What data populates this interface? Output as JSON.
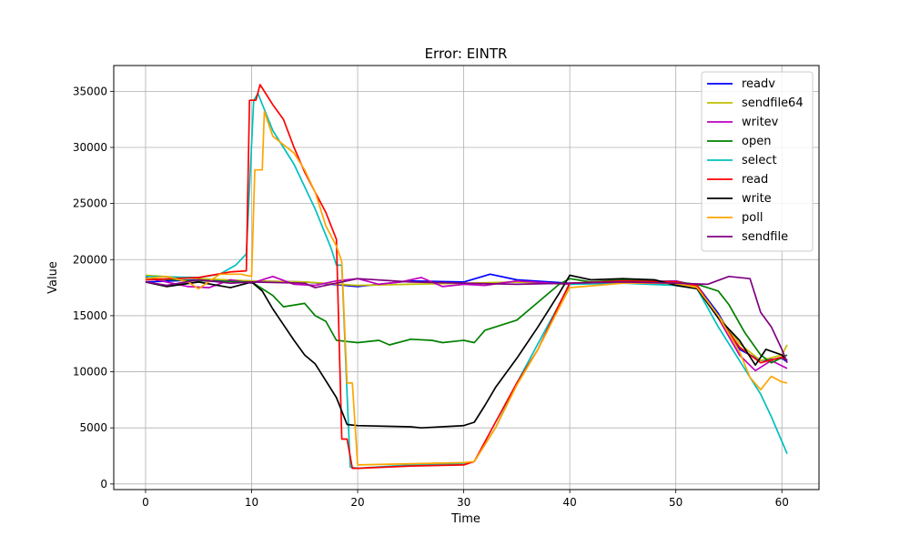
{
  "chart_data": {
    "type": "line",
    "title": "Error: EINTR",
    "xlabel": "Time",
    "ylabel": "Value",
    "xlim": [
      -3,
      63.5
    ],
    "ylim": [
      -500,
      37300
    ],
    "xticks": [
      0,
      10,
      20,
      30,
      40,
      50,
      60
    ],
    "yticks": [
      0,
      5000,
      10000,
      15000,
      20000,
      25000,
      30000,
      35000
    ],
    "grid": true,
    "legend_position": "top-right",
    "series": [
      {
        "name": "readv",
        "color": "#0000ff",
        "points": [
          [
            0,
            18000
          ],
          [
            5,
            18200
          ],
          [
            10,
            18100
          ],
          [
            15,
            18000
          ],
          [
            20,
            17600
          ],
          [
            25,
            18100
          ],
          [
            30,
            18000
          ],
          [
            32.5,
            18700
          ],
          [
            35,
            18200
          ],
          [
            40,
            17900
          ],
          [
            45,
            18000
          ],
          [
            50,
            17800
          ],
          [
            52,
            17700
          ],
          [
            54,
            15200
          ],
          [
            56,
            12000
          ],
          [
            58,
            11000
          ],
          [
            60,
            11200
          ],
          [
            60.5,
            10900
          ]
        ]
      },
      {
        "name": "sendfile64",
        "color": "#bfbf00",
        "points": [
          [
            0,
            18600
          ],
          [
            5,
            18300
          ],
          [
            10,
            18100
          ],
          [
            15,
            18000
          ],
          [
            20,
            17700
          ],
          [
            25,
            17800
          ],
          [
            30,
            17900
          ],
          [
            35,
            18000
          ],
          [
            40,
            17800
          ],
          [
            45,
            18100
          ],
          [
            50,
            17800
          ],
          [
            52,
            17600
          ],
          [
            54,
            15000
          ],
          [
            56,
            12500
          ],
          [
            58,
            11000
          ],
          [
            60,
            11500
          ],
          [
            60.5,
            12400
          ]
        ]
      },
      {
        "name": "writev",
        "color": "#bf00bf",
        "points": [
          [
            0,
            18400
          ],
          [
            2,
            18000
          ],
          [
            4,
            17600
          ],
          [
            6,
            17500
          ],
          [
            8,
            18200
          ],
          [
            10,
            17900
          ],
          [
            12,
            18500
          ],
          [
            14,
            17800
          ],
          [
            16,
            17700
          ],
          [
            18,
            18100
          ],
          [
            20,
            18300
          ],
          [
            22,
            17800
          ],
          [
            24,
            18000
          ],
          [
            26,
            18400
          ],
          [
            28,
            17600
          ],
          [
            30,
            17800
          ],
          [
            32,
            17700
          ],
          [
            35,
            18100
          ],
          [
            40,
            17800
          ],
          [
            45,
            18000
          ],
          [
            50,
            18100
          ],
          [
            52,
            17700
          ],
          [
            54,
            14800
          ],
          [
            56,
            11500
          ],
          [
            57.5,
            10100
          ],
          [
            59,
            11000
          ],
          [
            60.5,
            10300
          ]
        ]
      },
      {
        "name": "open",
        "color": "#008000",
        "points": [
          [
            0,
            18300
          ],
          [
            5,
            18100
          ],
          [
            10,
            18000
          ],
          [
            12,
            16800
          ],
          [
            13,
            15800
          ],
          [
            15,
            16100
          ],
          [
            16,
            15000
          ],
          [
            17,
            14500
          ],
          [
            18,
            12800
          ],
          [
            20,
            12600
          ],
          [
            22,
            12800
          ],
          [
            23,
            12400
          ],
          [
            25,
            12900
          ],
          [
            27,
            12800
          ],
          [
            28,
            12600
          ],
          [
            30,
            12800
          ],
          [
            31,
            12600
          ],
          [
            32,
            13700
          ],
          [
            35,
            14600
          ],
          [
            37,
            16200
          ],
          [
            39,
            17800
          ],
          [
            40,
            18300
          ],
          [
            42,
            18000
          ],
          [
            45,
            18200
          ],
          [
            50,
            18000
          ],
          [
            52,
            17800
          ],
          [
            54,
            17200
          ],
          [
            55,
            16000
          ],
          [
            56.5,
            13500
          ],
          [
            58,
            11500
          ],
          [
            59,
            10800
          ],
          [
            60.5,
            11500
          ]
        ]
      },
      {
        "name": "select",
        "color": "#00bfbf",
        "points": [
          [
            0,
            18500
          ],
          [
            5,
            18400
          ],
          [
            7,
            18700
          ],
          [
            8.5,
            19500
          ],
          [
            9.5,
            20500
          ],
          [
            10.2,
            34200
          ],
          [
            10.6,
            34800
          ],
          [
            12,
            31500
          ],
          [
            14,
            28500
          ],
          [
            16,
            24500
          ],
          [
            17.5,
            21000
          ],
          [
            18,
            19500
          ],
          [
            18.5,
            19500
          ],
          [
            19,
            8000
          ],
          [
            19.3,
            1500
          ],
          [
            20,
            1400
          ],
          [
            25,
            1700
          ],
          [
            30,
            1800
          ],
          [
            31,
            2000
          ],
          [
            33,
            5000
          ],
          [
            35,
            9000
          ],
          [
            37,
            12500
          ],
          [
            39,
            16000
          ],
          [
            40,
            17800
          ],
          [
            45,
            17900
          ],
          [
            50,
            17700
          ],
          [
            52,
            17400
          ],
          [
            54,
            14000
          ],
          [
            56,
            11000
          ],
          [
            57,
            9500
          ],
          [
            58,
            8000
          ],
          [
            59,
            6000
          ],
          [
            60,
            3800
          ],
          [
            60.5,
            2700
          ]
        ]
      },
      {
        "name": "read",
        "color": "#ff0000",
        "points": [
          [
            0,
            18200
          ],
          [
            5,
            18400
          ],
          [
            8,
            18900
          ],
          [
            9.5,
            19000
          ],
          [
            9.8,
            34200
          ],
          [
            10.4,
            34200
          ],
          [
            10.8,
            35600
          ],
          [
            12,
            33800
          ],
          [
            13,
            32500
          ],
          [
            14,
            30000
          ],
          [
            15,
            27800
          ],
          [
            16,
            26000
          ],
          [
            17,
            24200
          ],
          [
            18,
            21800
          ],
          [
            18.5,
            4000
          ],
          [
            19,
            4000
          ],
          [
            19.5,
            1400
          ],
          [
            20,
            1400
          ],
          [
            25,
            1600
          ],
          [
            30,
            1700
          ],
          [
            31,
            2000
          ],
          [
            33,
            5500
          ],
          [
            35,
            9000
          ],
          [
            37,
            12000
          ],
          [
            39,
            16000
          ],
          [
            40,
            17900
          ],
          [
            45,
            18100
          ],
          [
            50,
            18000
          ],
          [
            52,
            17700
          ],
          [
            54,
            14800
          ],
          [
            56,
            12200
          ],
          [
            58,
            10800
          ],
          [
            60,
            11300
          ],
          [
            60.5,
            11000
          ]
        ]
      },
      {
        "name": "write",
        "color": "#000000",
        "points": [
          [
            0,
            18000
          ],
          [
            2,
            17600
          ],
          [
            5,
            18000
          ],
          [
            8,
            17500
          ],
          [
            10,
            18000
          ],
          [
            11,
            17200
          ],
          [
            12,
            15600
          ],
          [
            13,
            14200
          ],
          [
            14,
            12800
          ],
          [
            15,
            11500
          ],
          [
            16,
            10700
          ],
          [
            17,
            9200
          ],
          [
            18,
            7700
          ],
          [
            19,
            5300
          ],
          [
            20,
            5200
          ],
          [
            25,
            5100
          ],
          [
            26,
            5000
          ],
          [
            30,
            5200
          ],
          [
            31,
            5500
          ],
          [
            32,
            7000
          ],
          [
            33,
            8600
          ],
          [
            35,
            11200
          ],
          [
            37,
            14000
          ],
          [
            39,
            17000
          ],
          [
            40,
            18600
          ],
          [
            42,
            18200
          ],
          [
            45,
            18300
          ],
          [
            48,
            18200
          ],
          [
            50,
            17700
          ],
          [
            52,
            17400
          ],
          [
            54,
            14800
          ],
          [
            56,
            12800
          ],
          [
            57.5,
            10600
          ],
          [
            58.5,
            12000
          ],
          [
            60,
            11500
          ],
          [
            60.5,
            11000
          ]
        ]
      },
      {
        "name": "poll",
        "color": "#ffa500",
        "points": [
          [
            0,
            18300
          ],
          [
            2,
            18500
          ],
          [
            4,
            18000
          ],
          [
            5,
            17400
          ],
          [
            7,
            18700
          ],
          [
            9,
            18700
          ],
          [
            10,
            18500
          ],
          [
            10.3,
            28000
          ],
          [
            11,
            28000
          ],
          [
            11.2,
            33200
          ],
          [
            12,
            31000
          ],
          [
            14,
            29500
          ],
          [
            15,
            28000
          ],
          [
            16,
            26000
          ],
          [
            17,
            23000
          ],
          [
            18,
            21200
          ],
          [
            18.5,
            19800
          ],
          [
            19,
            9000
          ],
          [
            19.5,
            9000
          ],
          [
            20,
            1700
          ],
          [
            25,
            1800
          ],
          [
            30,
            1900
          ],
          [
            31,
            2000
          ],
          [
            33,
            5000
          ],
          [
            35,
            8800
          ],
          [
            37,
            12000
          ],
          [
            39,
            15700
          ],
          [
            40,
            17500
          ],
          [
            45,
            17900
          ],
          [
            50,
            17900
          ],
          [
            52,
            17500
          ],
          [
            54,
            15000
          ],
          [
            56,
            11800
          ],
          [
            57,
            9500
          ],
          [
            58,
            8400
          ],
          [
            59,
            9600
          ],
          [
            60,
            9100
          ],
          [
            60.5,
            9000
          ]
        ]
      },
      {
        "name": "sendfile",
        "color": "#800080",
        "points": [
          [
            0,
            18000
          ],
          [
            2,
            17700
          ],
          [
            5,
            18200
          ],
          [
            8,
            17900
          ],
          [
            10,
            18000
          ],
          [
            15,
            17900
          ],
          [
            16,
            17500
          ],
          [
            20,
            18300
          ],
          [
            25,
            18000
          ],
          [
            30,
            17900
          ],
          [
            35,
            17800
          ],
          [
            40,
            17900
          ],
          [
            45,
            18000
          ],
          [
            50,
            17900
          ],
          [
            53,
            17800
          ],
          [
            55,
            18500
          ],
          [
            57,
            18300
          ],
          [
            58,
            15300
          ],
          [
            59,
            14000
          ],
          [
            60,
            12000
          ],
          [
            60.5,
            10800
          ]
        ]
      }
    ]
  }
}
